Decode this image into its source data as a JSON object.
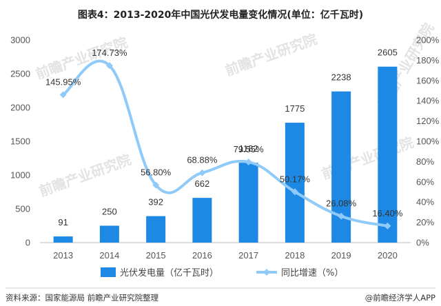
{
  "chart_data": {
    "type": "bar",
    "title": "图表4：2013-2020年中国光伏发电量变化情况(单位：亿千瓦时)",
    "categories": [
      "2013",
      "2014",
      "2015",
      "2016",
      "2017",
      "2018",
      "2019",
      "2020"
    ],
    "series": [
      {
        "name": "光伏发电量（亿千瓦时）",
        "type": "bar",
        "axis": "left",
        "values": [
          91,
          250,
          392,
          662,
          1182,
          1775,
          2238,
          2605
        ],
        "labels": [
          "91",
          "250",
          "392",
          "662",
          "1182",
          "1775",
          "2238",
          "2605"
        ]
      },
      {
        "name": "同比增速（%）",
        "type": "line",
        "axis": "right",
        "values": [
          145.95,
          174.73,
          56.8,
          68.88,
          79.55,
          50.17,
          26.08,
          16.4
        ],
        "labels": [
          "145.95%",
          "174.73%",
          "56.80%",
          "68.88%",
          "79.55%",
          "50.17%",
          "26.08%",
          "16.40%"
        ]
      }
    ],
    "y_left": {
      "min": 0,
      "max": 3000,
      "ticks": [
        "0",
        "500",
        "1000",
        "1500",
        "2000",
        "2500",
        "3000"
      ]
    },
    "y_right": {
      "min": 0,
      "max": 200,
      "ticks": [
        "0%",
        "20%",
        "40%",
        "60%",
        "80%",
        "100%",
        "120%",
        "140%",
        "160%",
        "180%",
        "200%"
      ]
    },
    "grid": false,
    "legend_position": "bottom",
    "colors": {
      "bar": "#1e88e5",
      "line": "#90caf9"
    }
  },
  "source": "资料来源：国家能源局 前瞻产业研究院整理",
  "brand": "@前瞻经济学人APP",
  "watermark": "前瞻产业研究院"
}
